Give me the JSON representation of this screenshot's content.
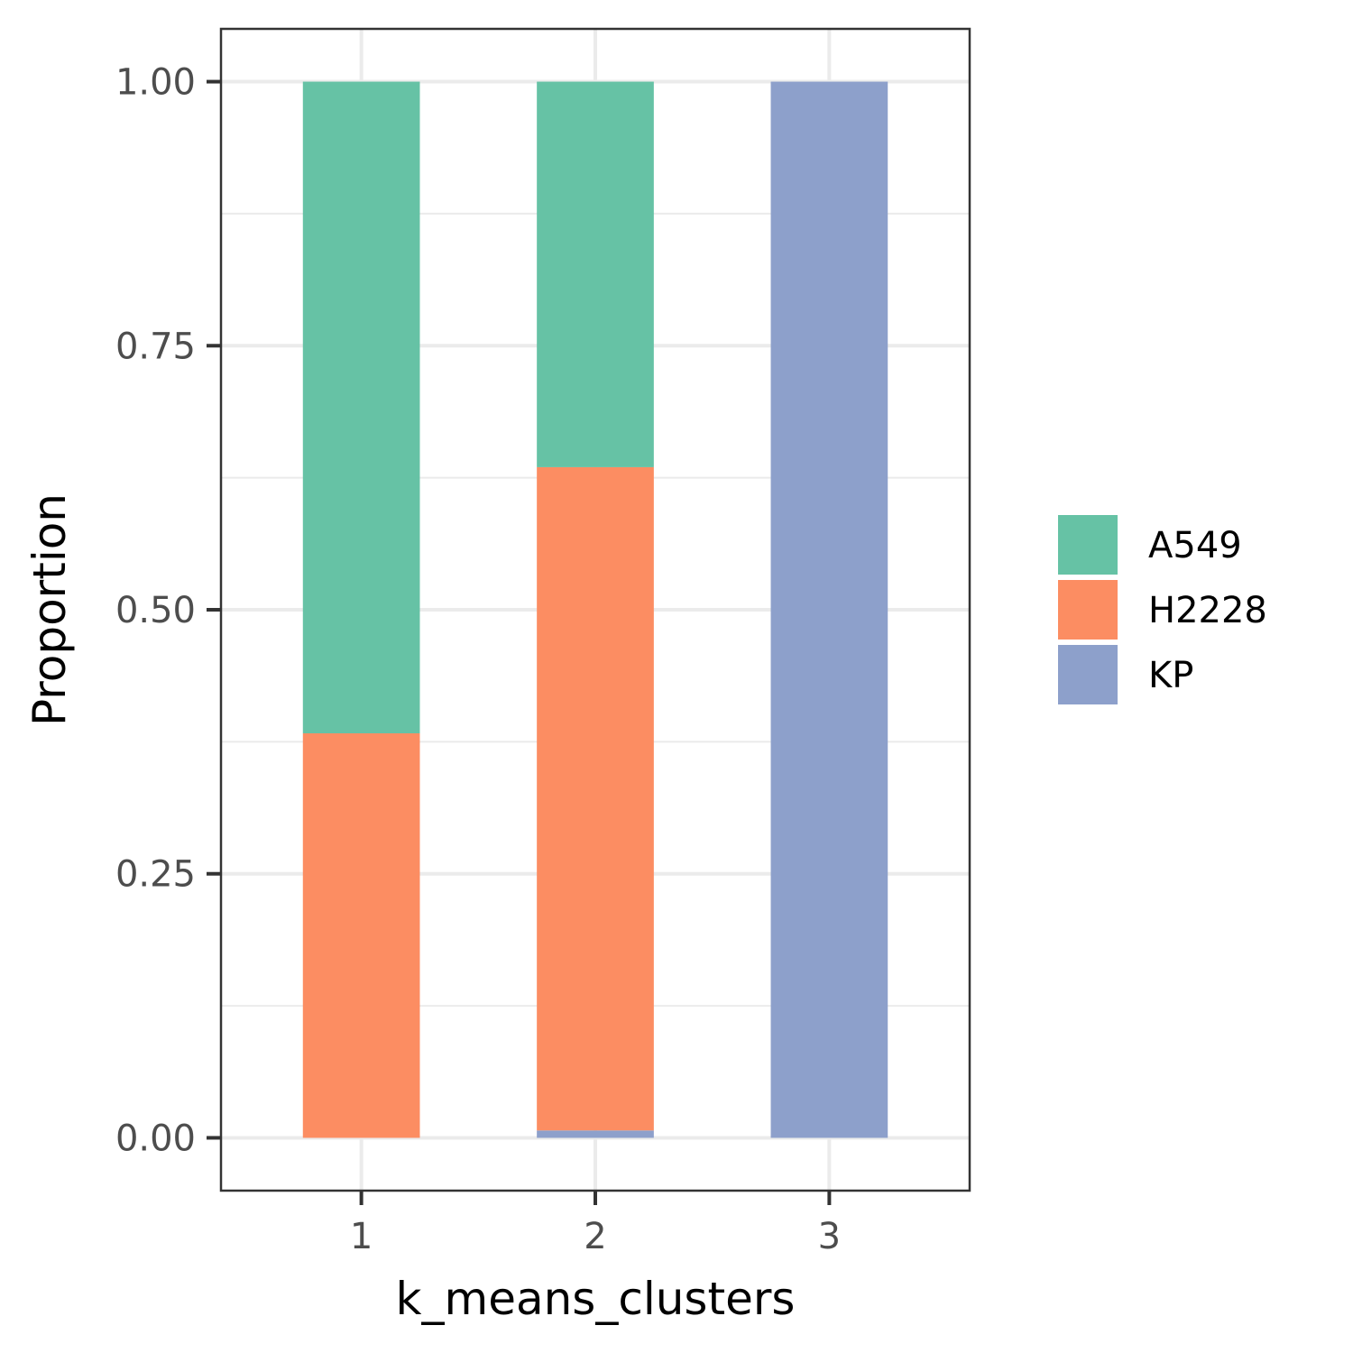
{
  "chart_data": {
    "type": "bar",
    "stacked": true,
    "categories": [
      "1",
      "2",
      "3"
    ],
    "series": [
      {
        "name": "A549",
        "color": "#66c2a5",
        "values": [
          0.617,
          0.365,
          0.0
        ]
      },
      {
        "name": "H2228",
        "color": "#fc8d62",
        "values": [
          0.383,
          0.628,
          0.0
        ]
      },
      {
        "name": "KP",
        "color": "#8da0cb",
        "values": [
          0.0,
          0.007,
          1.0
        ]
      }
    ],
    "xlabel": "k_means_clusters",
    "ylabel": "Proportion",
    "ylim": [
      -0.05,
      1.05
    ],
    "yticks": [
      0,
      0.25,
      0.5,
      0.75,
      1.0
    ],
    "ytick_labels": [
      "0.00",
      "0.25",
      "0.50",
      "0.75",
      "1.00"
    ],
    "grid": true,
    "legend_position": "right",
    "theme": "bw"
  }
}
